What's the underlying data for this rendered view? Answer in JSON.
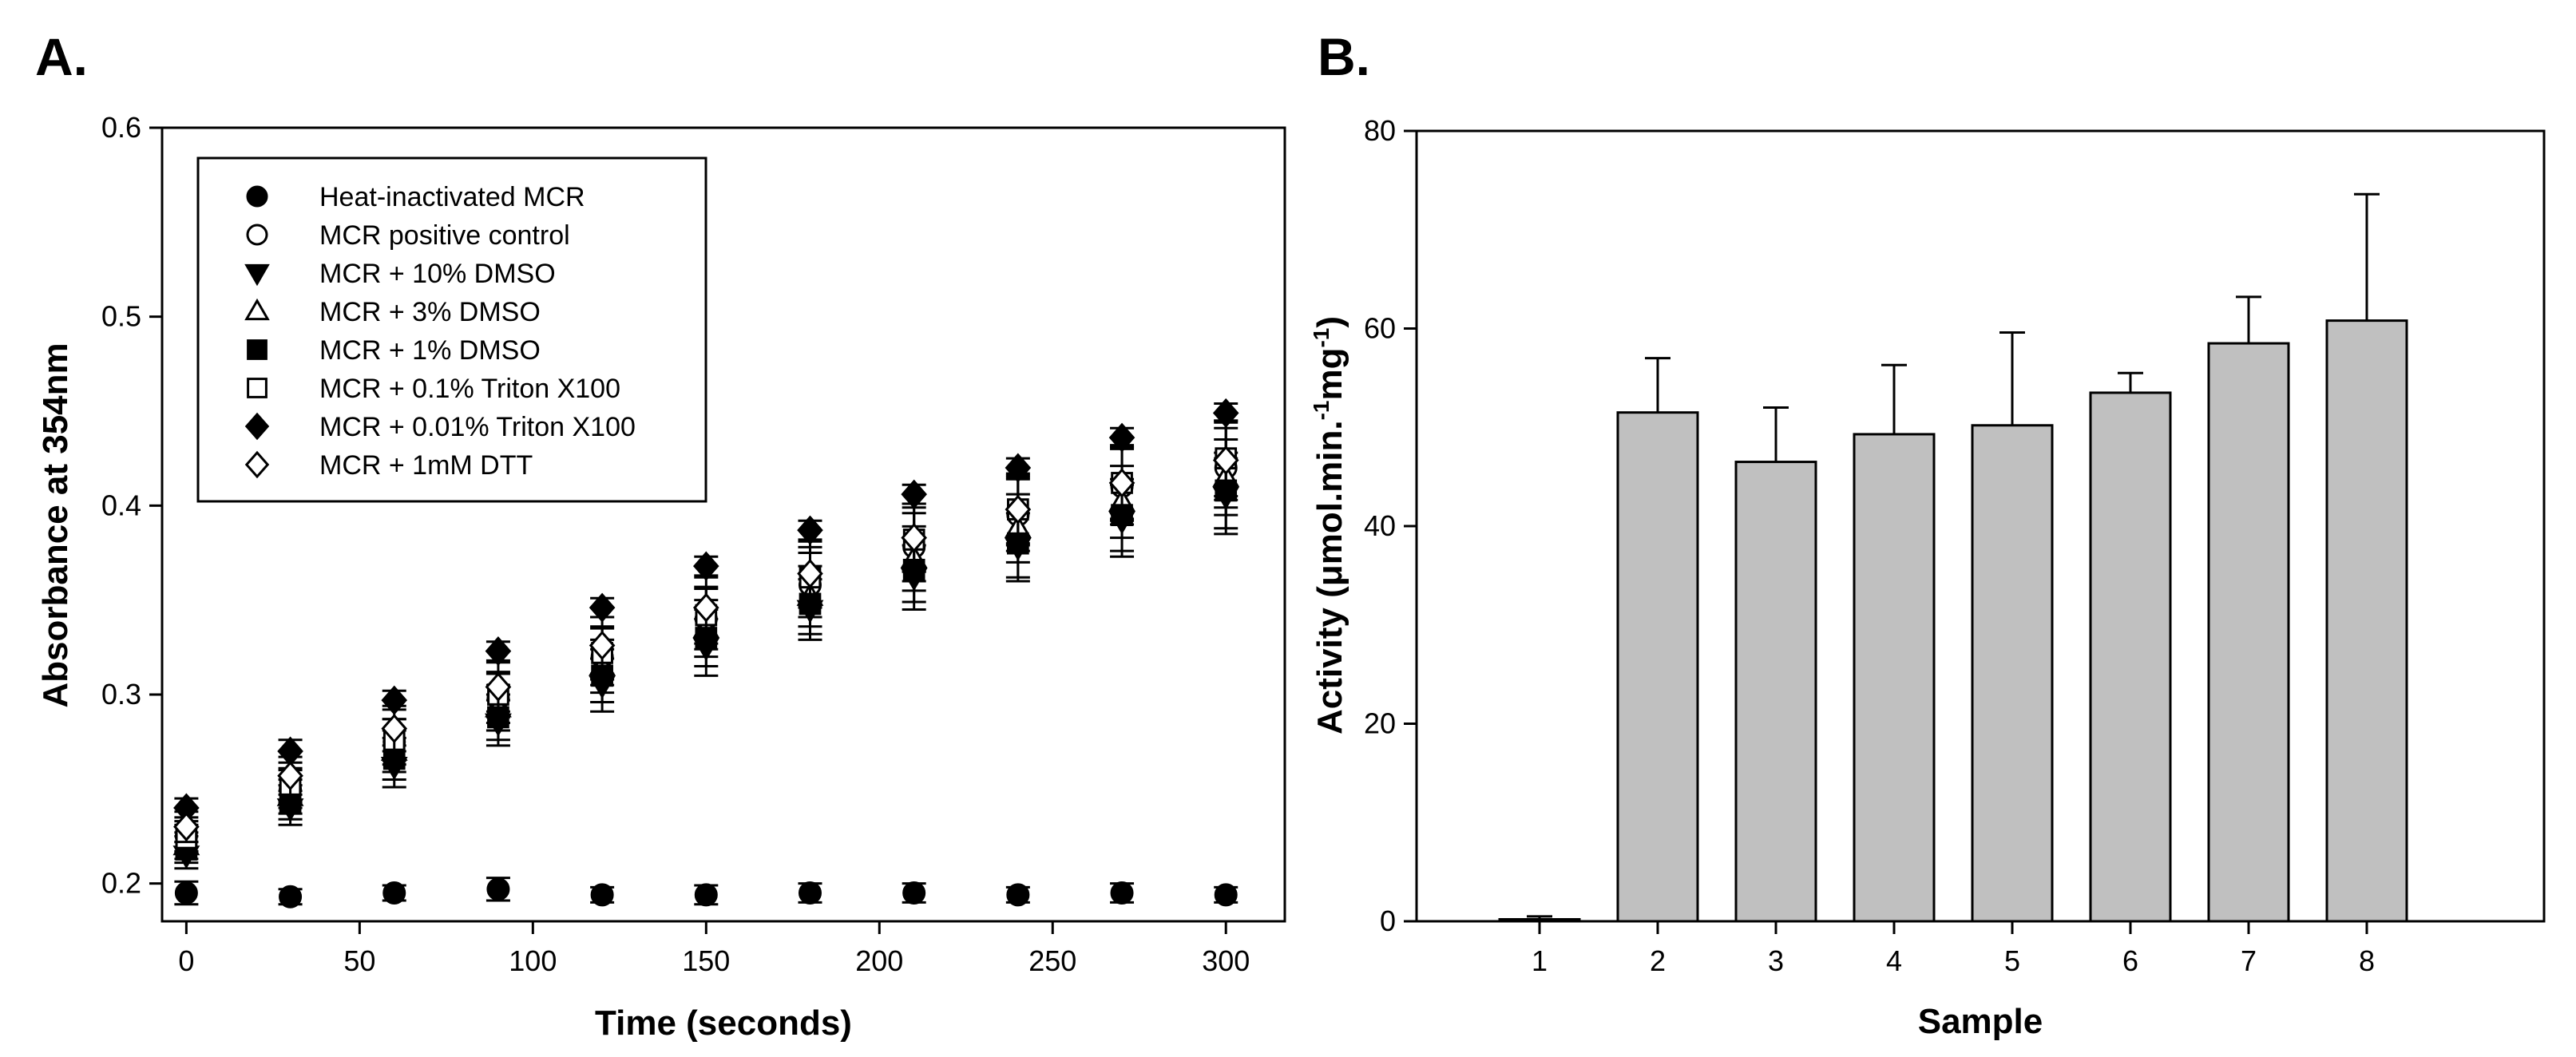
{
  "chart_data": [
    {
      "type": "scatter",
      "panel_label": "A.",
      "xlabel": "Time (seconds)",
      "ylabel": "Absorbance at 354nm",
      "xlim": [
        -7,
        317
      ],
      "ylim": [
        0.18,
        0.6
      ],
      "x_ticks": [
        0,
        50,
        100,
        150,
        200,
        250,
        300
      ],
      "x_tick_labels": [
        "0",
        "50",
        "100",
        "150",
        "200",
        "250",
        "300"
      ],
      "y_ticks": [
        0.2,
        0.3,
        0.4,
        0.5,
        0.6
      ],
      "y_tick_labels": [
        "0.2",
        "0.3",
        "0.4",
        "0.5",
        "0.6"
      ],
      "grid": false,
      "legend_position": "top-left",
      "x": [
        0,
        30,
        60,
        90,
        120,
        150,
        180,
        210,
        240,
        270,
        300
      ],
      "series": [
        {
          "name": "Heat-inactivated MCR",
          "marker": "circle-filled",
          "values": [
            0.195,
            0.193,
            0.195,
            0.197,
            0.194,
            0.194,
            0.195,
            0.195,
            0.194,
            0.195,
            0.194
          ],
          "errors": [
            0.006,
            0.004,
            0.004,
            0.006,
            0.004,
            0.005,
            0.005,
            0.005,
            0.004,
            0.005,
            0.004
          ]
        },
        {
          "name": "MCR positive control",
          "marker": "circle-open",
          "values": [
            0.225,
            0.25,
            0.275,
            0.298,
            0.32,
            0.34,
            0.358,
            0.378,
            0.395,
            0.41,
            0.42
          ],
          "errors": [
            0.008,
            0.01,
            0.012,
            0.013,
            0.015,
            0.016,
            0.017,
            0.018,
            0.019,
            0.02,
            0.021
          ]
        },
        {
          "name": "MCR + 10% DMSO",
          "marker": "triangle-down-filled",
          "values": [
            0.215,
            0.24,
            0.262,
            0.285,
            0.305,
            0.325,
            0.345,
            0.362,
            0.378,
            0.392,
            0.405
          ],
          "errors": [
            0.007,
            0.009,
            0.011,
            0.012,
            0.014,
            0.015,
            0.016,
            0.017,
            0.018,
            0.019,
            0.02
          ]
        },
        {
          "name": "MCR + 3% DMSO",
          "marker": "triangle-up-open",
          "values": [
            0.22,
            0.246,
            0.27,
            0.293,
            0.315,
            0.335,
            0.352,
            0.372,
            0.388,
            0.402,
            0.415
          ],
          "errors": [
            0.007,
            0.009,
            0.011,
            0.012,
            0.014,
            0.015,
            0.016,
            0.017,
            0.018,
            0.019,
            0.02
          ]
        },
        {
          "name": "MCR + 1% DMSO",
          "marker": "square-filled",
          "values": [
            0.218,
            0.243,
            0.266,
            0.288,
            0.31,
            0.33,
            0.348,
            0.366,
            0.38,
            0.395,
            0.408
          ],
          "errors": [
            0.007,
            0.009,
            0.011,
            0.012,
            0.014,
            0.015,
            0.016,
            0.017,
            0.018,
            0.019,
            0.02
          ]
        },
        {
          "name": "MCR + 0.1% Triton X100",
          "marker": "square-open",
          "values": [
            0.224,
            0.252,
            0.276,
            0.3,
            0.322,
            0.342,
            0.362,
            0.382,
            0.398,
            0.412,
            0.425
          ],
          "errors": [
            0.007,
            0.009,
            0.011,
            0.012,
            0.014,
            0.015,
            0.016,
            0.017,
            0.018,
            0.019,
            0.02
          ]
        },
        {
          "name": "MCR + 0.01% Triton X100",
          "marker": "diamond-filled",
          "values": [
            0.24,
            0.27,
            0.297,
            0.323,
            0.346,
            0.368,
            0.387,
            0.406,
            0.42,
            0.436,
            0.449
          ],
          "errors": [
            0.005,
            0.006,
            0.005,
            0.005,
            0.005,
            0.005,
            0.005,
            0.005,
            0.005,
            0.005,
            0.005
          ]
        },
        {
          "name": "MCR + 1mM DTT",
          "marker": "diamond-open",
          "values": [
            0.23,
            0.257,
            0.282,
            0.304,
            0.326,
            0.346,
            0.364,
            0.383,
            0.398,
            0.412,
            0.424
          ],
          "errors": [
            0.008,
            0.01,
            0.012,
            0.013,
            0.015,
            0.016,
            0.017,
            0.018,
            0.019,
            0.02,
            0.021
          ]
        }
      ]
    },
    {
      "type": "bar",
      "panel_label": "B.",
      "xlabel": "Sample",
      "ylabel": "Activity (μmol.min.",
      "ylabel_sup1": "-1",
      "ylabel_mid": "mg",
      "ylabel_sup2": "-1",
      "ylabel_end": ")",
      "ylim": [
        0,
        80
      ],
      "y_ticks": [
        0,
        20,
        40,
        60,
        80
      ],
      "y_tick_labels": [
        "0",
        "20",
        "40",
        "60",
        "80"
      ],
      "grid": false,
      "bar_color": "#c0c0c0",
      "categories": [
        "1",
        "2",
        "3",
        "4",
        "5",
        "6",
        "7",
        "8"
      ],
      "values": [
        0.2,
        51.5,
        46.5,
        49.3,
        50.2,
        53.5,
        58.5,
        60.8
      ],
      "errors": [
        0.3,
        5.5,
        5.5,
        7.0,
        9.4,
        2.0,
        4.7,
        12.8
      ]
    }
  ]
}
